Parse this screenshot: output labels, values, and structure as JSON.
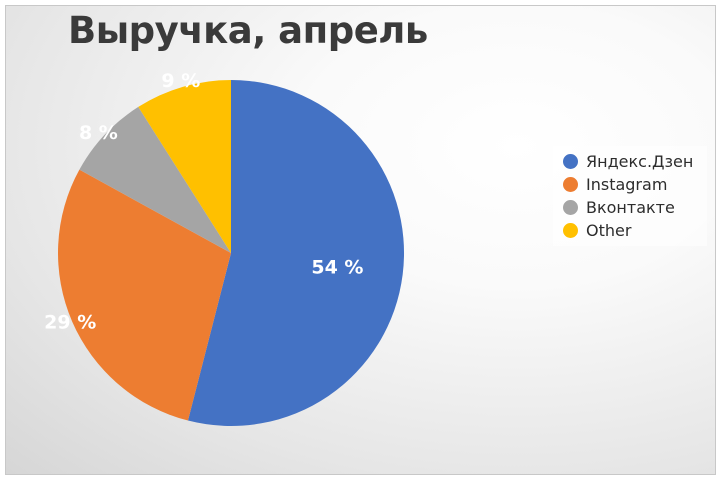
{
  "chart_data": {
    "type": "pie",
    "title": "Выручка, апрель",
    "slices": [
      {
        "label": "Яндекс.Дзен",
        "value": 54,
        "display": "54 %",
        "color": "#4472C4"
      },
      {
        "label": "Instagram",
        "value": 29,
        "display": "29 %",
        "color": "#ED7D31"
      },
      {
        "label": "Вконтакте",
        "value": 8,
        "display": "8 %",
        "color": "#A5A5A5"
      },
      {
        "label": "Other",
        "value": 9,
        "display": "9 %",
        "color": "#FFC000"
      }
    ],
    "start": "12 o'clock",
    "direction": "clockwise",
    "legend_position": "right"
  }
}
